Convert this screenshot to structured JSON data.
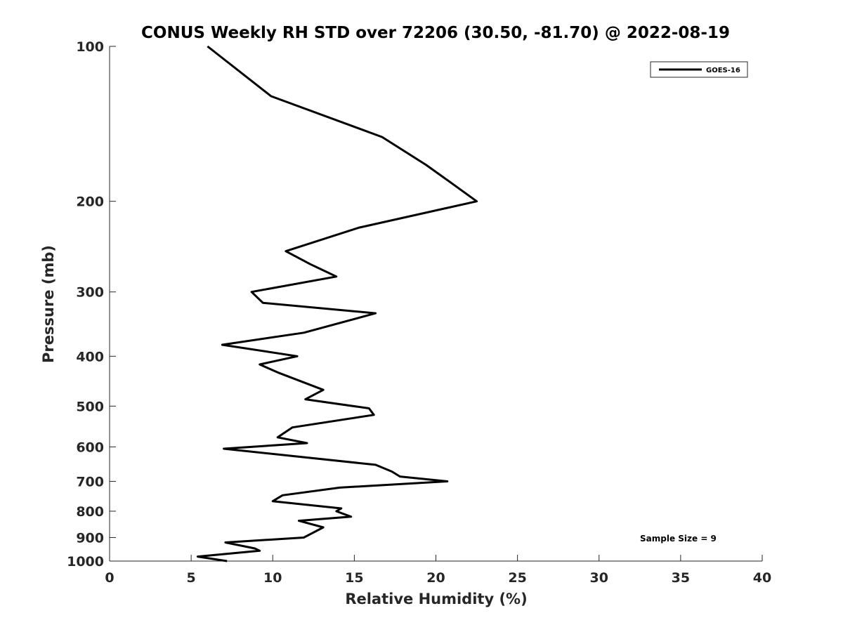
{
  "chart_data": {
    "type": "line",
    "title": "CONUS Weekly RH STD over 72206 (30.50, -81.70) @ 2022-08-19",
    "xlabel": "Relative Humidity (%)",
    "ylabel": "Pressure (mb)",
    "xlim": [
      0,
      40
    ],
    "ylim": [
      100,
      1000
    ],
    "y_scale": "log",
    "y_reversed": true,
    "x_ticks": [
      0,
      5,
      10,
      15,
      20,
      25,
      30,
      35,
      40
    ],
    "y_ticks": [
      100,
      200,
      300,
      400,
      500,
      600,
      700,
      800,
      900,
      1000
    ],
    "grid": false,
    "legend_position": "top-right",
    "annotation": "Sample Size = 9",
    "series": [
      {
        "name": "GOES-16",
        "color": "#000000",
        "x": [
          6.0,
          9.9,
          16.7,
          19.4,
          20.5,
          22.5,
          15.3,
          10.8,
          12.3,
          13.9,
          8.7,
          9.4,
          16.3,
          11.9,
          6.9,
          11.5,
          9.2,
          10.3,
          13.1,
          12.0,
          15.9,
          16.2,
          11.2,
          10.3,
          12.1,
          7.0,
          16.3,
          17.3,
          17.8,
          20.7,
          14.1,
          10.6,
          10.0,
          14.2,
          13.9,
          14.8,
          11.6,
          13.1,
          11.9,
          7.1,
          8.9,
          9.2,
          5.4,
          7.2
        ],
        "y": [
          100,
          125,
          150,
          170,
          180,
          200,
          225,
          250,
          265,
          280,
          300,
          315,
          330,
          360,
          380,
          400,
          415,
          430,
          465,
          485,
          505,
          520,
          550,
          575,
          590,
          605,
          650,
          670,
          685,
          700,
          720,
          745,
          765,
          790,
          800,
          820,
          835,
          860,
          900,
          920,
          945,
          955,
          980,
          1000
        ]
      }
    ]
  }
}
